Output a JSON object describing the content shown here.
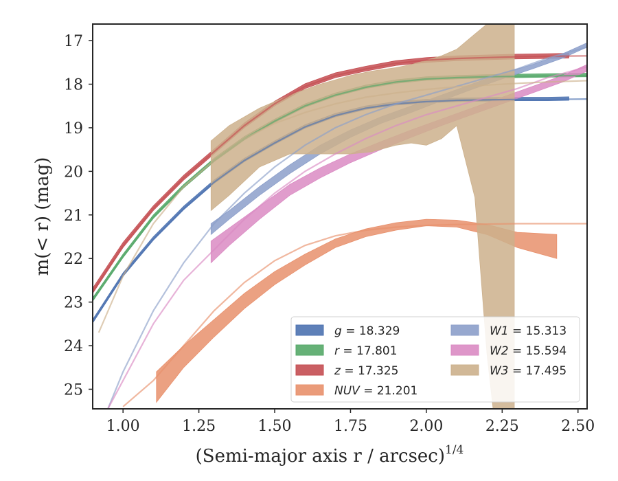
{
  "chart_data": {
    "type": "line",
    "xlabel": "(Semi-major axis r / arcsec)",
    "xlabel_sup": "1/4",
    "ylabel": "m(< r) (mag)",
    "xlim": [
      0.9,
      2.53
    ],
    "ylim": [
      25.45,
      16.62
    ],
    "y_inverted": true,
    "x_ticks": [
      "1.00",
      "1.25",
      "1.50",
      "1.75",
      "2.00",
      "2.25",
      "2.50"
    ],
    "x_tick_values": [
      1.0,
      1.25,
      1.5,
      1.75,
      2.0,
      2.25,
      2.5
    ],
    "y_ticks": [
      "17",
      "18",
      "19",
      "20",
      "21",
      "22",
      "23",
      "24",
      "25"
    ],
    "y_tick_values": [
      17,
      18,
      19,
      20,
      21,
      22,
      23,
      24,
      25
    ],
    "grid": false,
    "legend_position": "lower-right",
    "series": [
      {
        "name": "g = 18.329",
        "band": "g",
        "total_mag": "18.329",
        "color": "#4c72b0",
        "model_x": [
          0.9,
          1.0,
          1.1,
          1.2,
          1.3,
          1.4,
          1.5,
          1.6,
          1.7,
          1.8,
          1.9,
          2.0,
          2.1,
          2.2,
          2.3,
          2.4,
          2.53
        ],
        "model_y": [
          23.45,
          22.38,
          21.55,
          20.85,
          20.25,
          19.75,
          19.35,
          18.98,
          18.72,
          18.55,
          18.45,
          18.4,
          18.37,
          18.36,
          18.35,
          18.35,
          18.34
        ],
        "band_x": [
          0.9,
          1.0,
          1.1,
          1.2,
          1.3,
          1.4,
          1.5,
          1.6,
          1.7,
          1.8,
          1.9,
          2.0,
          2.1,
          2.2,
          2.3,
          2.4,
          2.47
        ],
        "band_lower": [
          23.4,
          22.33,
          21.5,
          20.8,
          20.2,
          19.7,
          19.3,
          18.93,
          18.67,
          18.5,
          18.4,
          18.35,
          18.32,
          18.31,
          18.3,
          18.3,
          18.29
        ],
        "band_upper": [
          23.48,
          22.41,
          21.58,
          20.88,
          20.28,
          19.78,
          19.38,
          19.01,
          18.75,
          18.58,
          18.48,
          18.43,
          18.4,
          18.39,
          18.38,
          18.38,
          18.37
        ]
      },
      {
        "name": "r = 17.801",
        "band": "r",
        "total_mag": "17.801",
        "color": "#55a868",
        "model_x": [
          0.9,
          1.0,
          1.1,
          1.2,
          1.3,
          1.4,
          1.5,
          1.6,
          1.7,
          1.8,
          1.9,
          2.0,
          2.1,
          2.2,
          2.3,
          2.4,
          2.53
        ],
        "model_y": [
          22.95,
          21.95,
          21.05,
          20.35,
          19.75,
          19.25,
          18.85,
          18.5,
          18.25,
          18.07,
          17.95,
          17.88,
          17.85,
          17.83,
          17.82,
          17.81,
          17.8
        ],
        "band_x": [
          0.9,
          1.0,
          1.1,
          1.2,
          1.3,
          1.4,
          1.5,
          1.6,
          1.7,
          1.8,
          1.9,
          2.0,
          2.1,
          2.2,
          2.3,
          2.4,
          2.53
        ],
        "band_lower": [
          22.9,
          21.9,
          21.0,
          20.3,
          19.7,
          19.2,
          18.8,
          18.45,
          18.2,
          18.02,
          17.9,
          17.83,
          17.8,
          17.78,
          17.77,
          17.76,
          17.75
        ],
        "band_upper": [
          22.98,
          21.98,
          21.08,
          20.38,
          19.78,
          19.28,
          18.88,
          18.53,
          18.28,
          18.1,
          17.98,
          17.91,
          17.88,
          17.86,
          17.85,
          17.84,
          17.83
        ]
      },
      {
        "name": "z = 17.325",
        "band": "z",
        "total_mag": "17.325",
        "color": "#c44e52",
        "model_x": [
          0.9,
          1.0,
          1.1,
          1.2,
          1.3,
          1.4,
          1.5,
          1.6,
          1.7,
          1.8,
          1.9,
          2.0,
          2.1,
          2.2,
          2.3,
          2.4,
          2.53
        ],
        "model_y": [
          22.75,
          21.7,
          20.85,
          20.15,
          19.55,
          18.95,
          18.45,
          18.05,
          17.8,
          17.65,
          17.52,
          17.45,
          17.41,
          17.39,
          17.37,
          17.36,
          17.35
        ],
        "band_x": [
          0.9,
          1.0,
          1.1,
          1.2,
          1.3,
          1.4,
          1.5,
          1.6,
          1.7,
          1.8,
          1.9,
          2.0,
          2.1,
          2.2,
          2.3,
          2.4,
          2.47
        ],
        "band_lower": [
          22.68,
          21.63,
          20.79,
          20.09,
          19.49,
          18.89,
          18.39,
          17.99,
          17.74,
          17.59,
          17.46,
          17.39,
          17.35,
          17.33,
          17.31,
          17.3,
          17.29
        ],
        "band_upper": [
          22.8,
          21.75,
          20.9,
          20.2,
          19.6,
          19.0,
          18.5,
          18.1,
          17.85,
          17.7,
          17.57,
          17.5,
          17.46,
          17.44,
          17.42,
          17.41,
          17.4
        ]
      },
      {
        "name": "NUV = 21.201",
        "band": "NUV",
        "total_mag": "21.201",
        "color": "#e8906c",
        "model_x": [
          1.0,
          1.1,
          1.2,
          1.3,
          1.4,
          1.5,
          1.6,
          1.7,
          1.8,
          1.9,
          2.0,
          2.1,
          2.2,
          2.3,
          2.4,
          2.53
        ],
        "model_y": [
          25.4,
          24.8,
          24.0,
          23.2,
          22.55,
          22.05,
          21.7,
          21.48,
          21.35,
          21.28,
          21.24,
          21.22,
          21.21,
          21.2,
          21.2,
          21.2
        ],
        "band_x": [
          1.11,
          1.2,
          1.3,
          1.4,
          1.5,
          1.6,
          1.7,
          1.8,
          1.9,
          2.0,
          2.1,
          2.2,
          2.3,
          2.43
        ],
        "band_lower": [
          24.6,
          24.0,
          23.4,
          22.8,
          22.3,
          21.9,
          21.55,
          21.32,
          21.18,
          21.1,
          21.12,
          21.22,
          21.4,
          21.45
        ],
        "band_upper": [
          25.3,
          24.5,
          23.8,
          23.15,
          22.6,
          22.15,
          21.75,
          21.5,
          21.35,
          21.25,
          21.28,
          21.45,
          21.75,
          22.0
        ]
      },
      {
        "name": "W1 = 15.313",
        "band": "W1",
        "total_mag": "15.313",
        "color": "#8c9fca",
        "model_x": [
          0.95,
          1.0,
          1.1,
          1.2,
          1.3,
          1.4,
          1.5,
          1.6,
          1.7,
          1.8,
          1.9,
          2.0,
          2.1,
          2.2,
          2.3,
          2.4,
          2.53
        ],
        "model_y": [
          25.45,
          24.6,
          23.2,
          22.1,
          21.2,
          20.5,
          19.9,
          19.4,
          19.0,
          18.7,
          18.45,
          18.25,
          18.05,
          17.85,
          17.65,
          17.4,
          17.15
        ],
        "band_x": [
          1.29,
          1.35,
          1.45,
          1.55,
          1.65,
          1.75,
          1.85,
          1.95,
          2.05,
          2.15,
          2.25,
          2.35,
          2.45,
          2.53
        ],
        "band_lower": [
          21.2,
          20.9,
          20.35,
          19.85,
          19.4,
          19.05,
          18.75,
          18.5,
          18.25,
          18.0,
          17.75,
          17.55,
          17.3,
          17.05
        ],
        "band_upper": [
          21.45,
          21.1,
          20.55,
          20.05,
          19.6,
          19.22,
          18.9,
          18.65,
          18.38,
          18.12,
          17.88,
          17.65,
          17.4,
          17.15
        ]
      },
      {
        "name": "W2 = 15.594",
        "band": "W2",
        "total_mag": "15.594",
        "color": "#da8bc3",
        "model_x": [
          0.95,
          1.0,
          1.1,
          1.2,
          1.3,
          1.4,
          1.5,
          1.6,
          1.7,
          1.8,
          1.9,
          2.0,
          2.1,
          2.2,
          2.3,
          2.4,
          2.53
        ],
        "model_y": [
          25.45,
          24.8,
          23.5,
          22.5,
          21.8,
          21.1,
          20.5,
          20.0,
          19.6,
          19.25,
          18.95,
          18.7,
          18.5,
          18.3,
          18.1,
          17.85,
          17.6
        ],
        "band_x": [
          1.29,
          1.35,
          1.45,
          1.55,
          1.65,
          1.75,
          1.85,
          1.95,
          2.05,
          2.15,
          2.25,
          2.35,
          2.45,
          2.53
        ],
        "band_lower": [
          21.6,
          21.3,
          20.8,
          20.3,
          19.92,
          19.6,
          19.32,
          19.05,
          18.8,
          18.55,
          18.3,
          18.05,
          17.8,
          17.55
        ],
        "band_upper": [
          22.1,
          21.7,
          21.1,
          20.55,
          20.15,
          19.8,
          19.5,
          19.22,
          18.95,
          18.7,
          18.45,
          18.2,
          17.95,
          17.7
        ]
      },
      {
        "name": "W3 = 17.495",
        "band": "W3",
        "total_mag": "17.495",
        "color": "#ccb08c",
        "model_x": [
          0.92,
          1.0,
          1.1,
          1.2,
          1.3,
          1.4,
          1.5,
          1.6,
          1.7,
          1.8,
          1.9,
          2.0,
          2.1,
          2.2,
          2.3,
          2.4,
          2.53
        ],
        "model_y": [
          23.7,
          22.4,
          21.2,
          20.35,
          19.75,
          19.25,
          18.9,
          18.65,
          18.45,
          18.3,
          18.2,
          18.12,
          18.06,
          18.02,
          17.98,
          17.95,
          17.92
        ],
        "band_x": [
          1.29,
          1.35,
          1.45,
          1.55,
          1.65,
          1.75,
          1.82,
          1.9,
          1.95,
          2.0,
          2.05,
          2.1,
          2.16,
          2.2,
          2.22,
          2.25,
          2.29
        ],
        "band_lower": [
          19.3,
          18.95,
          18.55,
          18.25,
          18.0,
          17.8,
          17.7,
          17.62,
          17.55,
          17.45,
          17.35,
          17.2,
          16.85,
          16.62,
          16.62,
          16.62,
          16.62
        ],
        "band_upper": [
          20.9,
          20.55,
          19.9,
          19.6,
          19.6,
          19.6,
          19.55,
          19.4,
          19.35,
          19.4,
          19.25,
          18.95,
          20.6,
          24.2,
          25.45,
          25.45,
          25.45
        ]
      }
    ]
  }
}
